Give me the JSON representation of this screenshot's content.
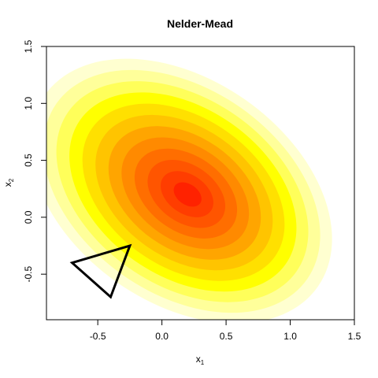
{
  "chart_data": {
    "type": "heatmap",
    "title": "Nelder-Mead",
    "xlabel": {
      "base": "x",
      "sub": "1"
    },
    "ylabel": {
      "base": "x",
      "sub": "2"
    },
    "xlim": [
      -0.9,
      1.5
    ],
    "ylim": [
      -0.9,
      1.5
    ],
    "x_ticks": [
      -0.5,
      0.0,
      0.5,
      1.0,
      1.5
    ],
    "x_tick_labels": [
      "-0.5",
      "0.0",
      "0.5",
      "1.0",
      "1.5"
    ],
    "y_ticks": [
      -0.5,
      0.0,
      0.5,
      1.0,
      1.5
    ],
    "y_tick_labels": [
      "-0.5",
      "0.0",
      "0.5",
      "1.0",
      "1.5"
    ],
    "grid": false,
    "contour_levels": [
      {
        "level": 1,
        "color": "#FFFFD0"
      },
      {
        "level": 2,
        "color": "#FFFF9A"
      },
      {
        "level": 3,
        "color": "#FFFF5A"
      },
      {
        "level": 4,
        "color": "#FFFF00"
      },
      {
        "level": 5,
        "color": "#FFE000"
      },
      {
        "level": 6,
        "color": "#FFC400"
      },
      {
        "level": 7,
        "color": "#FFA500"
      },
      {
        "level": 8,
        "color": "#FF8A00"
      },
      {
        "level": 9,
        "color": "#FF6E00"
      },
      {
        "level": 10,
        "color": "#FF5500"
      },
      {
        "level": 11,
        "color": "#FF3D00"
      },
      {
        "level": 12,
        "color": "#FF2200"
      }
    ],
    "surface_center": [
      0.2,
      0.2
    ],
    "simplex": [
      {
        "x": -0.7,
        "y": -0.4
      },
      {
        "x": -0.25,
        "y": -0.25
      },
      {
        "x": -0.4,
        "y": -0.7
      }
    ]
  }
}
